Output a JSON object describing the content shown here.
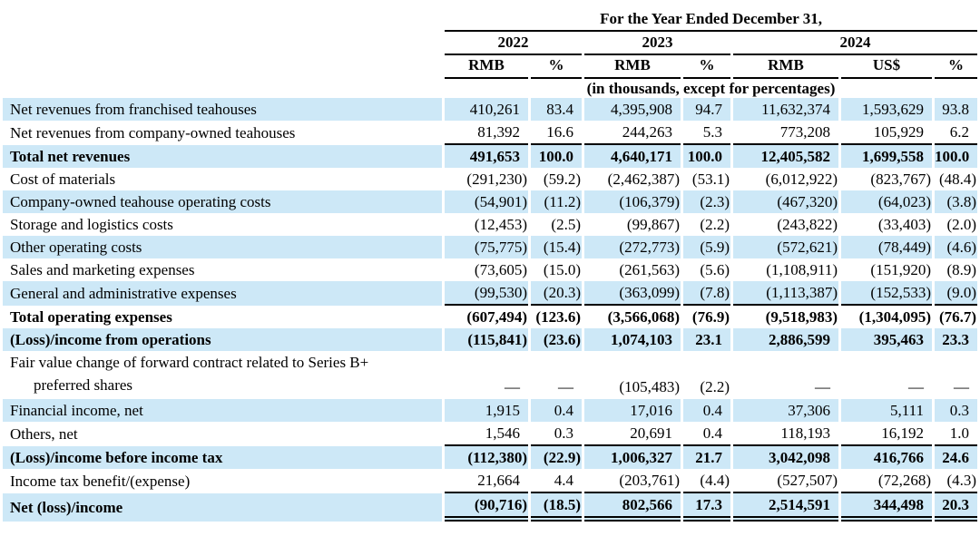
{
  "table": {
    "title": "For the Year Ended December 31,",
    "subtitle": "(in thousands, except for percentages)",
    "year_groups": [
      {
        "label": "2022",
        "col_count": 2
      },
      {
        "label": "2023",
        "col_count": 2
      },
      {
        "label": "2024",
        "col_count": 3
      }
    ],
    "col_headers": [
      "RMB",
      "%",
      "RMB",
      "%",
      "RMB",
      "US$",
      "%"
    ],
    "rows": [
      {
        "label": "Net revenues from franchised teahouses",
        "shaded": true,
        "bold": false,
        "underline": "none",
        "values": [
          "410,261",
          "83.4",
          "4,395,908",
          "94.7",
          "11,632,374",
          "1,593,629",
          "93.8"
        ]
      },
      {
        "label": "Net revenues from company-owned teahouses",
        "shaded": false,
        "bold": false,
        "underline": "single",
        "values": [
          "81,392",
          "16.6",
          "244,263",
          "5.3",
          "773,208",
          "105,929",
          "6.2"
        ]
      },
      {
        "label": "Total net revenues",
        "shaded": true,
        "bold": true,
        "underline": "none",
        "values": [
          "491,653",
          "100.0",
          "4,640,171",
          "100.0",
          "12,405,582",
          "1,699,558",
          "100.0"
        ]
      },
      {
        "label": "Cost of materials",
        "shaded": false,
        "bold": false,
        "underline": "none",
        "values": [
          "(291,230)",
          "(59.2)",
          "(2,462,387)",
          "(53.1)",
          "(6,012,922)",
          "(823,767)",
          "(48.4)"
        ]
      },
      {
        "label": "Company-owned teahouse operating costs",
        "shaded": true,
        "bold": false,
        "underline": "none",
        "values": [
          "(54,901)",
          "(11.2)",
          "(106,379)",
          "(2.3)",
          "(467,320)",
          "(64,023)",
          "(3.8)"
        ]
      },
      {
        "label": "Storage and logistics costs",
        "shaded": false,
        "bold": false,
        "underline": "none",
        "values": [
          "(12,453)",
          "(2.5)",
          "(99,867)",
          "(2.2)",
          "(243,822)",
          "(33,403)",
          "(2.0)"
        ]
      },
      {
        "label": "Other operating costs",
        "shaded": true,
        "bold": false,
        "underline": "none",
        "values": [
          "(75,775)",
          "(15.4)",
          "(272,773)",
          "(5.9)",
          "(572,621)",
          "(78,449)",
          "(4.6)"
        ]
      },
      {
        "label": "Sales and marketing expenses",
        "shaded": false,
        "bold": false,
        "underline": "none",
        "values": [
          "(73,605)",
          "(15.0)",
          "(261,563)",
          "(5.6)",
          "(1,108,911)",
          "(151,920)",
          "(8.9)"
        ]
      },
      {
        "label": "General and administrative expenses",
        "shaded": true,
        "bold": false,
        "underline": "single",
        "values": [
          "(99,530)",
          "(20.3)",
          "(363,099)",
          "(7.8)",
          "(1,113,387)",
          "(152,533)",
          "(9.0)"
        ]
      },
      {
        "label": "Total operating expenses",
        "shaded": false,
        "bold": true,
        "underline": "none",
        "values": [
          "(607,494)",
          "(123.6)",
          "(3,566,068)",
          "(76.9)",
          "(9,518,983)",
          "(1,304,095)",
          "(76.7)"
        ]
      },
      {
        "label": "(Loss)/income from operations",
        "shaded": true,
        "bold": true,
        "underline": "none",
        "values": [
          "(115,841)",
          "(23.6)",
          "1,074,103",
          "23.1",
          "2,886,599",
          "395,463",
          "23.3"
        ]
      },
      {
        "label": "Fair value change of forward contract related to Series B+",
        "label2": "preferred shares",
        "shaded": false,
        "bold": false,
        "underline": "none",
        "values": [
          "—",
          "—",
          "(105,483)",
          "(2.2)",
          "—",
          "—",
          "—"
        ]
      },
      {
        "label": "Financial income, net",
        "shaded": true,
        "bold": false,
        "underline": "none",
        "values": [
          "1,915",
          "0.4",
          "17,016",
          "0.4",
          "37,306",
          "5,111",
          "0.3"
        ]
      },
      {
        "label": "Others, net",
        "shaded": false,
        "bold": false,
        "underline": "single",
        "values": [
          "1,546",
          "0.3",
          "20,691",
          "0.4",
          "118,193",
          "16,192",
          "1.0"
        ]
      },
      {
        "label": "(Loss)/income before income tax",
        "shaded": true,
        "bold": true,
        "underline": "none",
        "values": [
          "(112,380)",
          "(22.9)",
          "1,006,327",
          "21.7",
          "3,042,098",
          "416,766",
          "24.6"
        ]
      },
      {
        "label": "Income tax benefit/(expense)",
        "shaded": false,
        "bold": false,
        "underline": "single",
        "values": [
          "21,664",
          "4.4",
          "(203,761)",
          "(4.4)",
          "(527,507)",
          "(72,268)",
          "(4.3)"
        ]
      },
      {
        "label": "Net (loss)/income",
        "shaded": true,
        "bold": true,
        "underline": "double",
        "values": [
          "(90,716)",
          "(18.5)",
          "802,566",
          "17.3",
          "2,514,591",
          "344,498",
          "20.3"
        ]
      }
    ]
  }
}
